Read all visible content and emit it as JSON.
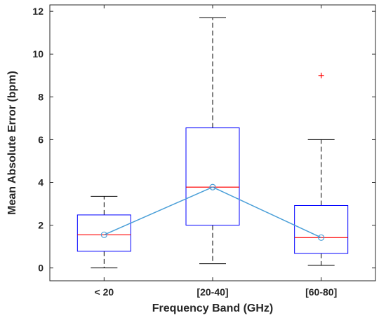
{
  "chart_data": {
    "type": "box",
    "title": "",
    "xlabel": "Frequency Band (GHz)",
    "ylabel": "Mean Absolute Error (bpm)",
    "ylim": [
      -0.6,
      12.3
    ],
    "yticks": [
      0,
      2,
      4,
      6,
      8,
      10,
      12
    ],
    "categories": [
      "< 20",
      "[20-40]",
      "[60-80]"
    ],
    "boxes": [
      {
        "category": "< 20",
        "whisker_low": 0.0,
        "q1": 0.78,
        "median": 1.55,
        "q3": 2.48,
        "whisker_high": 3.35,
        "outliers": []
      },
      {
        "category": "[20-40]",
        "whisker_low": 0.2,
        "q1": 2.0,
        "median": 3.78,
        "q3": 6.55,
        "whisker_high": 11.7,
        "outliers": []
      },
      {
        "category": "[60-80]",
        "whisker_low": 0.12,
        "q1": 0.68,
        "median": 1.42,
        "q3": 2.92,
        "whisker_high": 6.0,
        "outliers": [
          9.0
        ]
      }
    ],
    "mean_line": {
      "values": [
        1.55,
        3.78,
        1.42
      ],
      "marker": "circle"
    },
    "grid": false,
    "colors": {
      "box": "#0000ff",
      "median": "#ff0000",
      "whisker": "#000000",
      "outlier": "#ff0000",
      "mean_line": "#4a9fd8",
      "axes": "#262626"
    }
  }
}
